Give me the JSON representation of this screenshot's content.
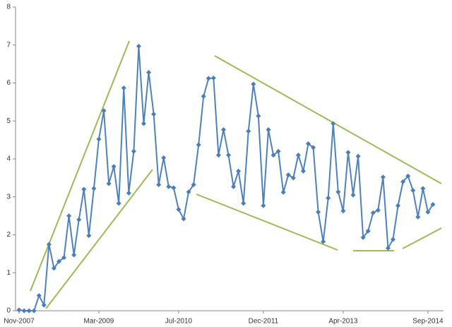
{
  "chart_data": {
    "type": "line",
    "categories": [
      "Nov-2007",
      null,
      null,
      null,
      null,
      null,
      null,
      null,
      null,
      null,
      null,
      null,
      null,
      null,
      null,
      null,
      "Mar-2009",
      null,
      null,
      null,
      null,
      null,
      null,
      null,
      null,
      null,
      null,
      null,
      null,
      null,
      null,
      null,
      "Jul-2010",
      null,
      null,
      null,
      null,
      null,
      null,
      null,
      null,
      null,
      null,
      null,
      null,
      null,
      null,
      null,
      null,
      "Dec-2011",
      null,
      null,
      null,
      null,
      null,
      null,
      null,
      null,
      null,
      null,
      null,
      null,
      null,
      null,
      null,
      "Apr-2013",
      null,
      null,
      null,
      null,
      null,
      null,
      null,
      null,
      null,
      null,
      null,
      null,
      null,
      null,
      null,
      null,
      "Sep-2014",
      null
    ],
    "values": [
      0.02,
      0,
      0,
      0,
      0.4,
      0.15,
      1.75,
      1.12,
      1.3,
      1.4,
      2.5,
      1.47,
      2.4,
      3.2,
      1.98,
      3.22,
      4.52,
      5.27,
      3.35,
      3.8,
      2.83,
      5.87,
      3.1,
      4.2,
      6.97,
      4.93,
      6.28,
      5.18,
      3.32,
      4.03,
      3.27,
      3.24,
      2.67,
      2.42,
      3.13,
      3.32,
      4.37,
      5.65,
      6.12,
      6.13,
      4.1,
      4.77,
      4.1,
      3.27,
      3.68,
      2.83,
      4.73,
      5.97,
      5.13,
      2.77,
      4.77,
      4.1,
      4.2,
      3.12,
      3.58,
      3.5,
      4.1,
      3.68,
      4.4,
      4.3,
      2.6,
      1.82,
      2.97,
      4.93,
      3.13,
      2.63,
      4.17,
      3.05,
      4.07,
      1.93,
      2.1,
      2.58,
      2.65,
      3.52,
      1.65,
      1.88,
      2.77,
      3.4,
      3.55,
      3.17,
      2.47,
      3.22,
      2.6,
      2.8
    ],
    "color": "#4f81bd",
    "ylim": [
      0,
      8
    ],
    "yticks": [
      0,
      1,
      2,
      3,
      4,
      5,
      6,
      7,
      8
    ],
    "grid": false
  }
}
